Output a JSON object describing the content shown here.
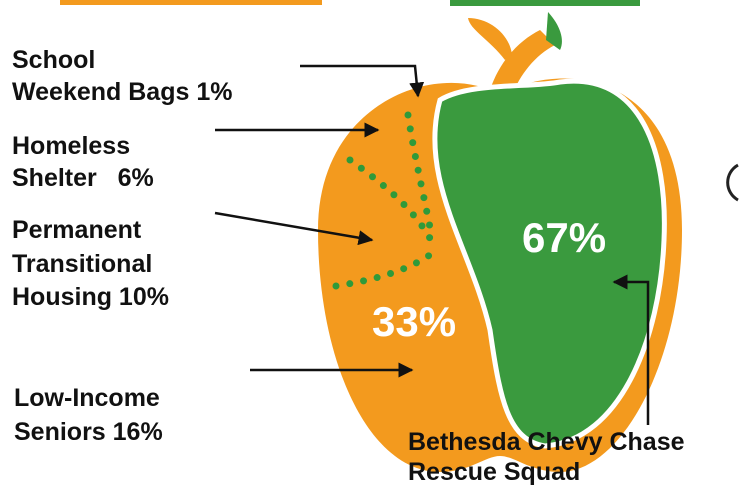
{
  "labels": [
    {
      "lines": [
        "School",
        "Weekend Bags 1%"
      ]
    },
    {
      "lines": [
        "Homeless",
        "Shelter   6%"
      ]
    },
    {
      "lines": [
        "Permanent",
        "Transitional",
        "Housing 10%"
      ]
    },
    {
      "lines": [
        "Low-Income",
        "Seniors 16%"
      ]
    },
    {
      "lines": [
        "Bethesda Chevy Chase",
        "Rescue Squad"
      ]
    }
  ],
  "green_share": "67%",
  "orange_share": "33%"
}
